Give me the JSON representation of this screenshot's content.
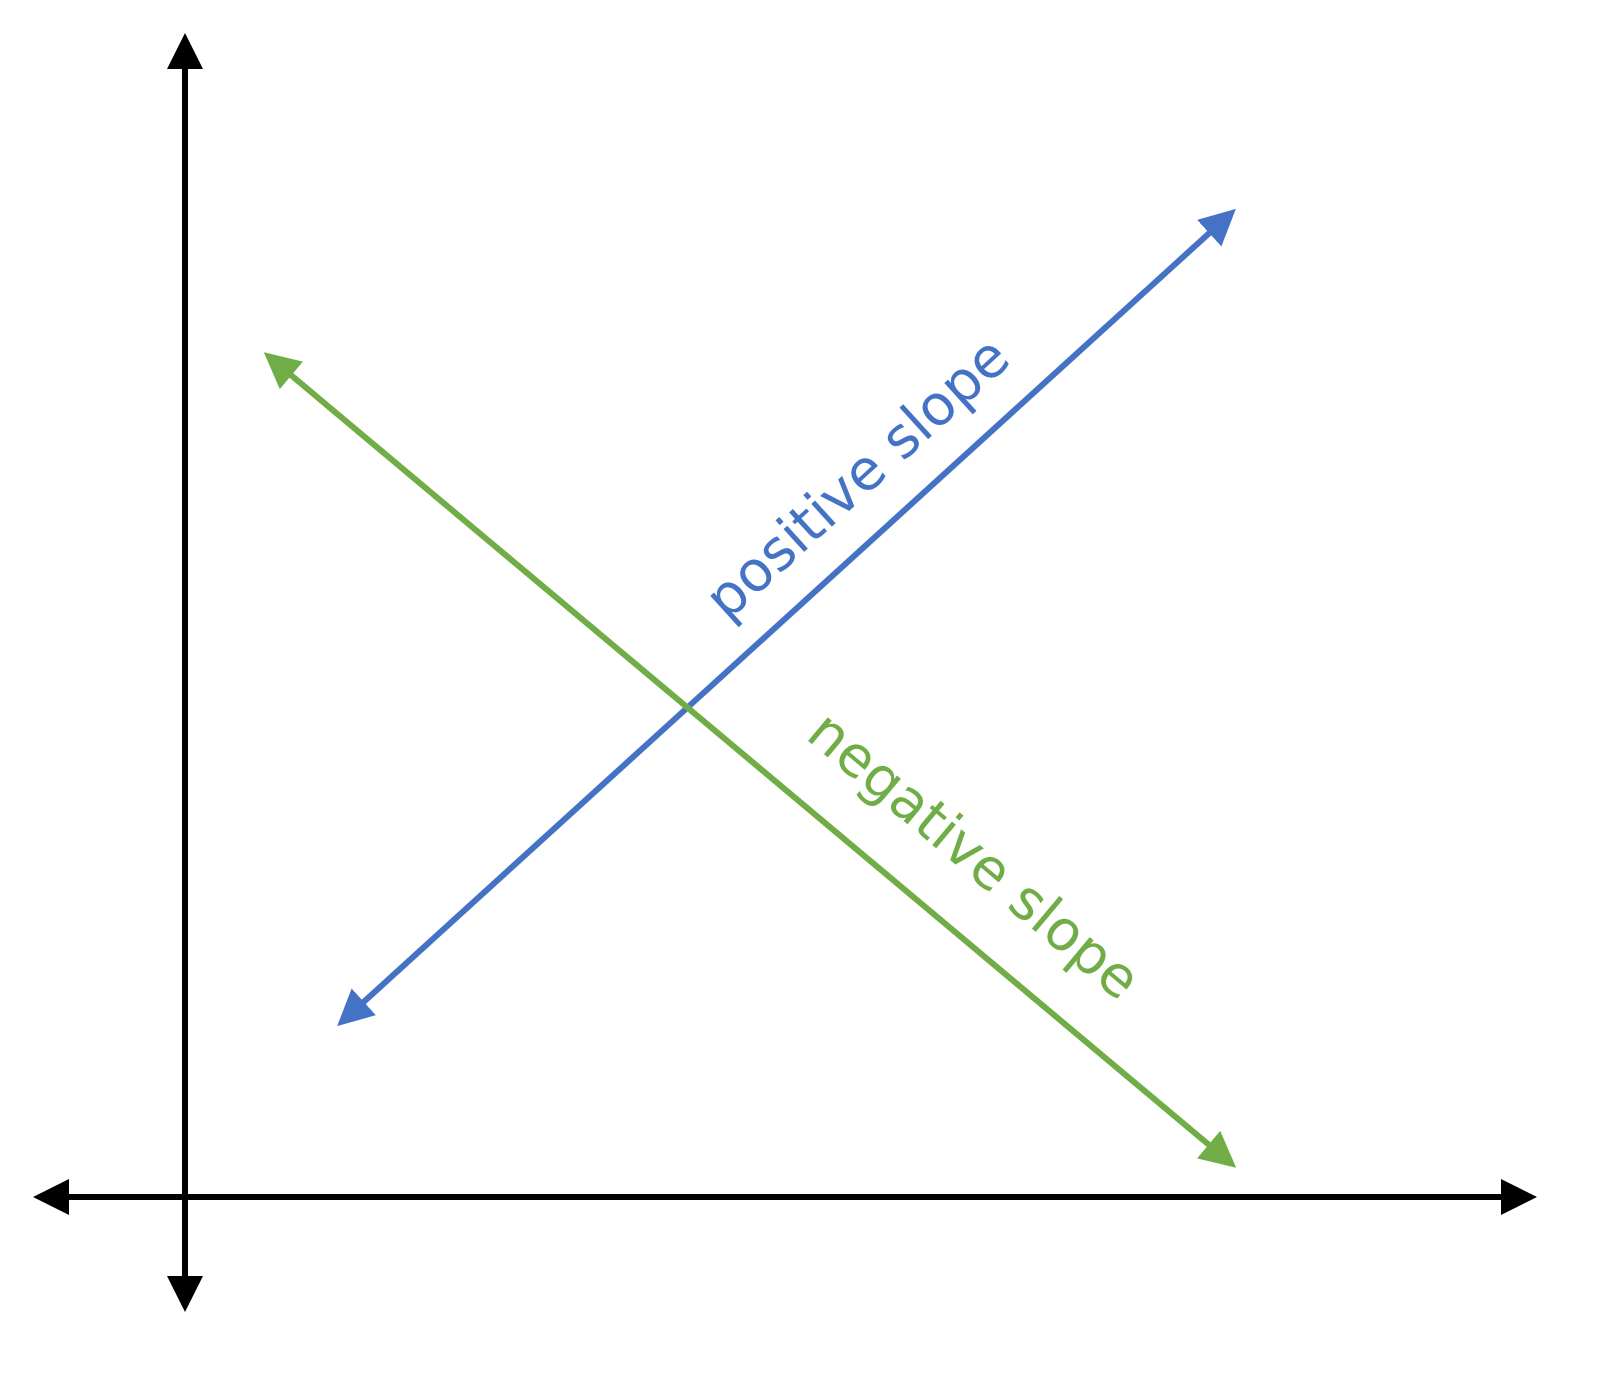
{
  "diagram": {
    "colors": {
      "axes": "#000000",
      "positive_line": "#4472C4",
      "negative_line": "#70AD47"
    },
    "labels": {
      "positive": "positive slope",
      "negative": "negative slope"
    }
  }
}
